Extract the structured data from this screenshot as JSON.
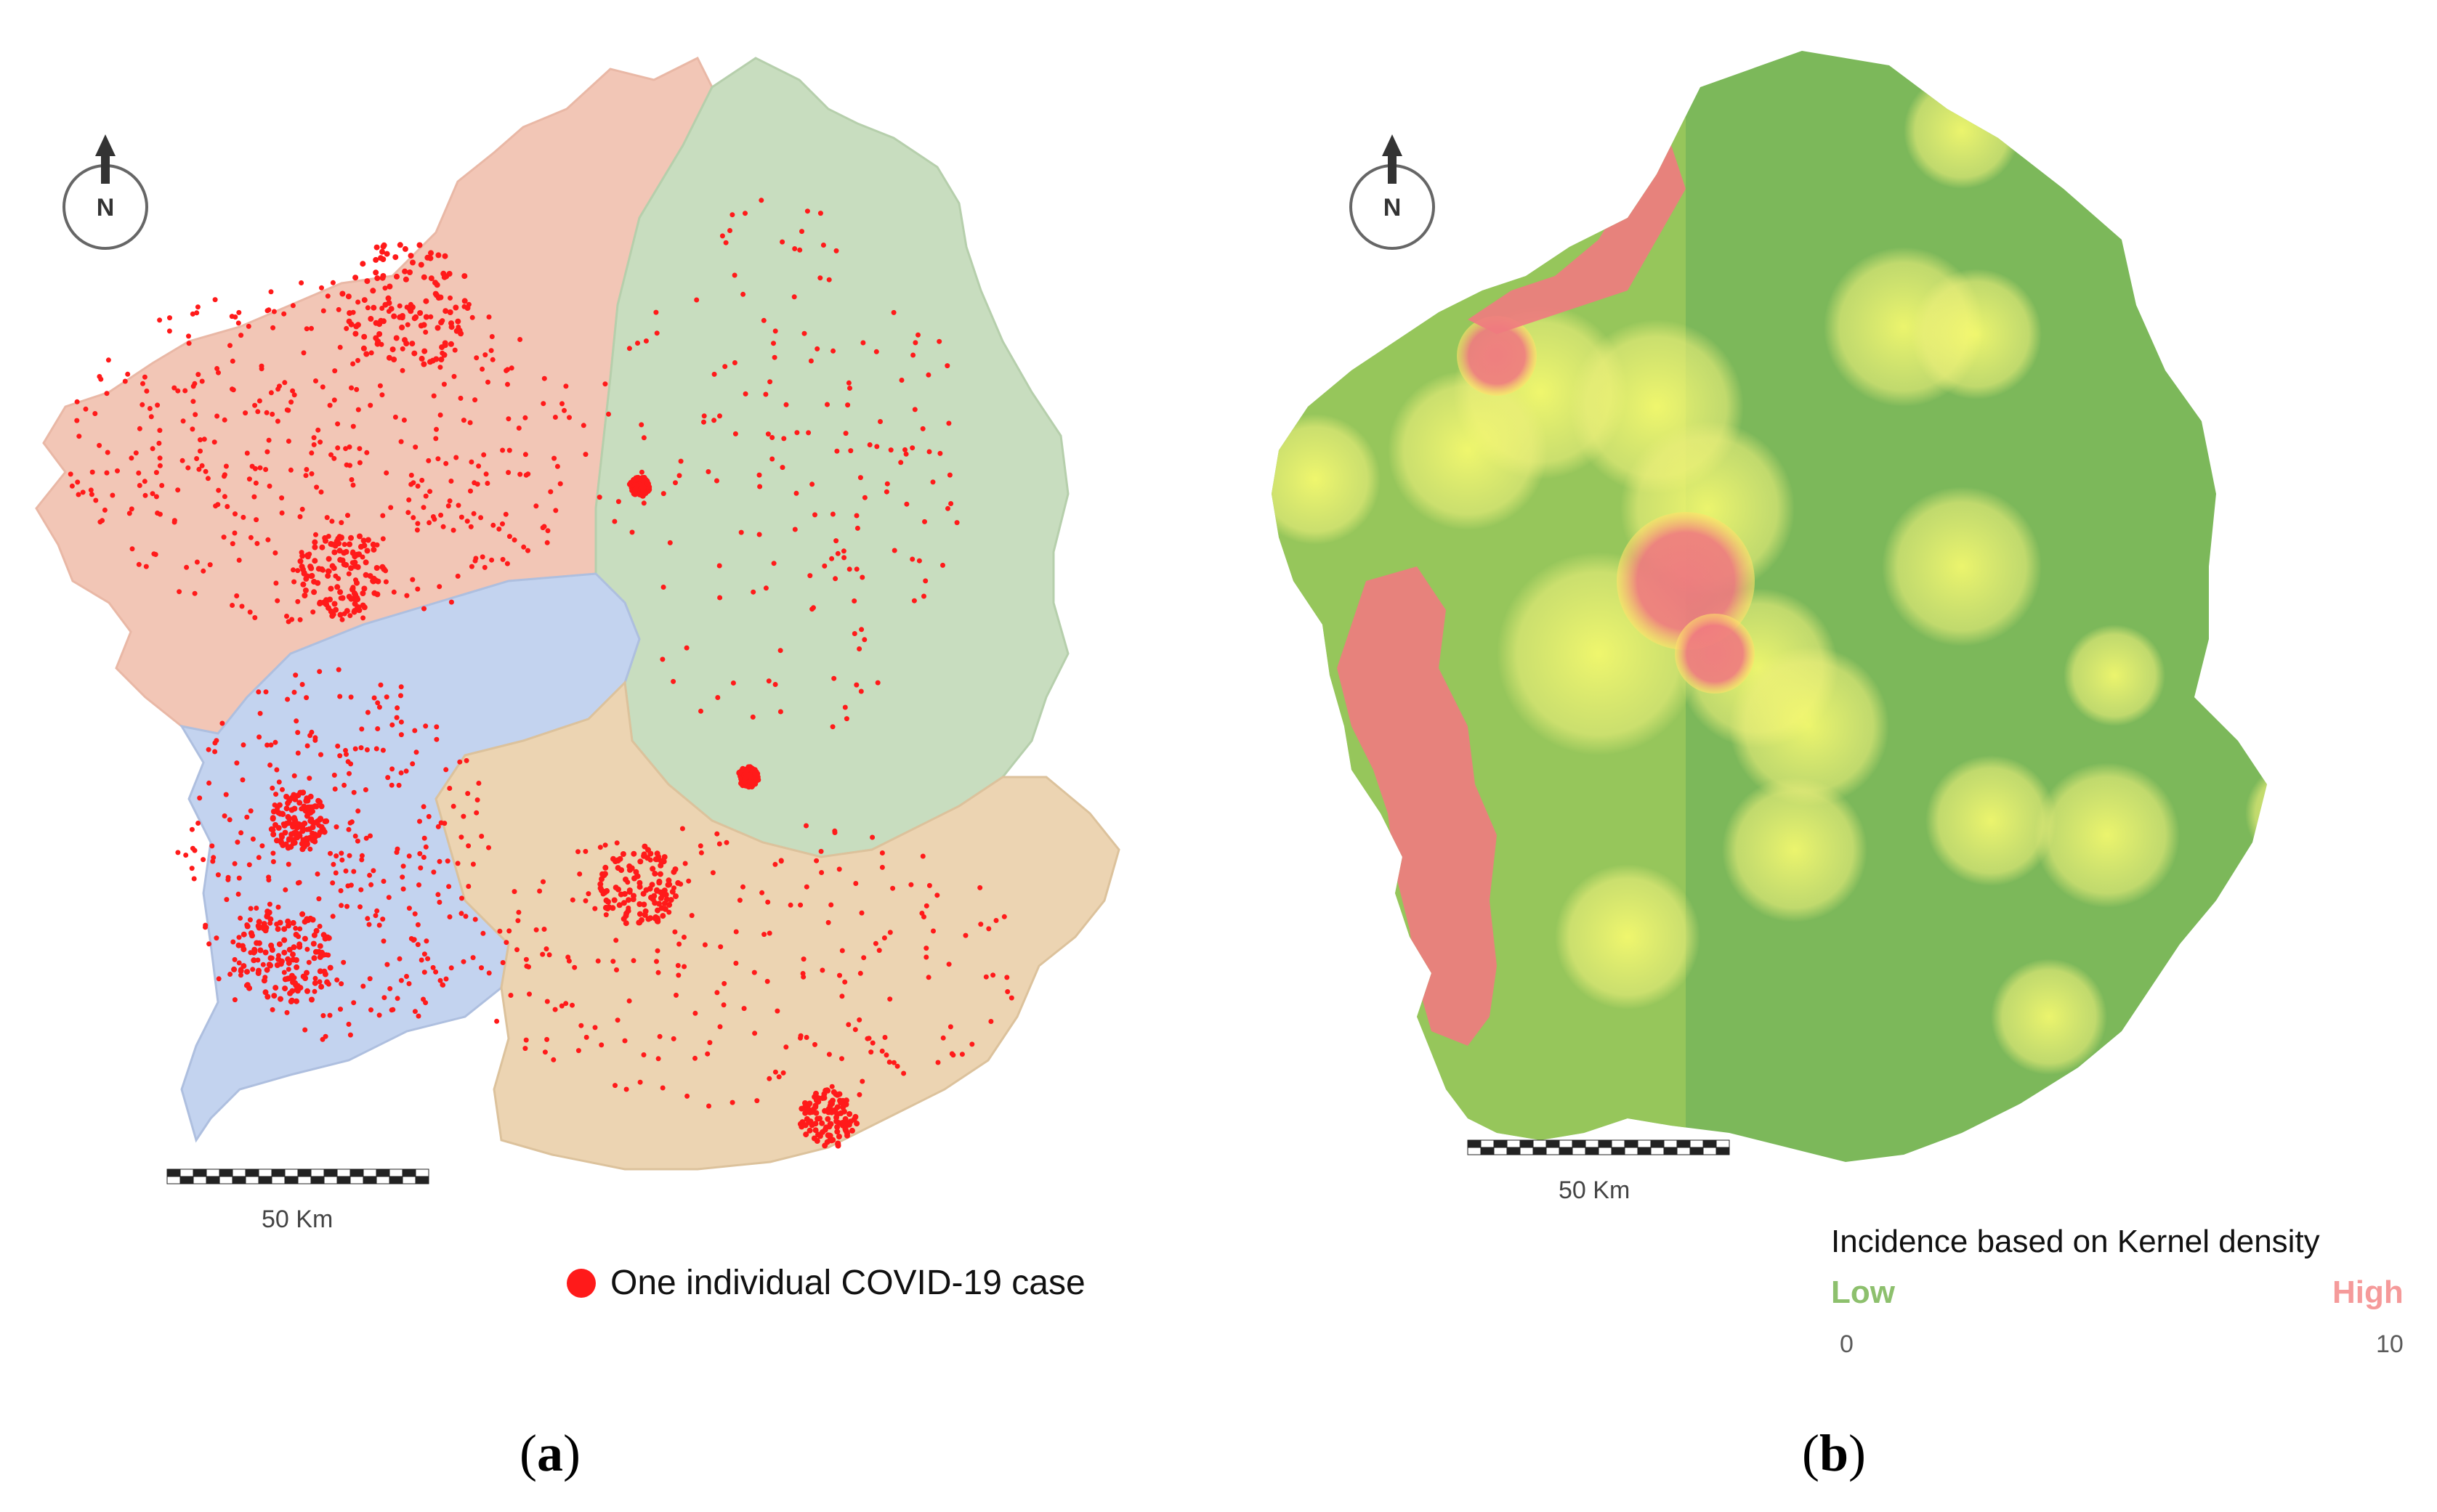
{
  "panel_a": {
    "north_label": "N",
    "scale_label": "50 Km",
    "legend_label": "One individual COVID-19 case",
    "caption": "a",
    "colors": {
      "case": "#ff1a1a",
      "a_coruna": "#f2c6b6",
      "lugo": "#c8ddbf",
      "pontevedra": "#c3d3ef",
      "ourense": "#ecd4b2"
    }
  },
  "panel_b": {
    "north_label": "N",
    "scale_label": "50 Km",
    "legend_title": "Incidence based on Kernel density",
    "legend_low": "Low",
    "legend_high": "High",
    "legend_min": "0",
    "legend_max": "10",
    "caption": "b",
    "colors": {
      "low": "#6aaa4c",
      "mid": "#ffff66",
      "high": "#ff6b6b",
      "hotspot": "#f07a80"
    }
  }
}
